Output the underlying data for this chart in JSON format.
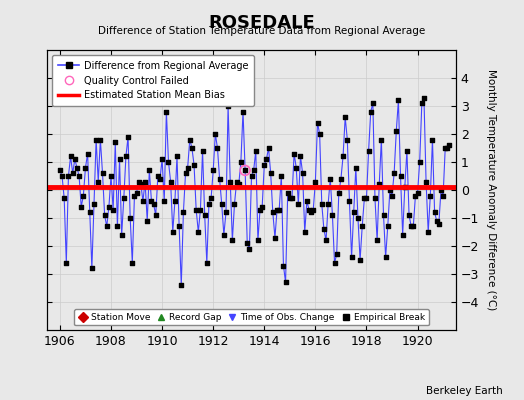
{
  "title": "ROSEDALE",
  "subtitle": "Difference of Station Temperature Data from Regional Average",
  "ylabel": "Monthly Temperature Anomaly Difference (°C)",
  "xlabel_bottom": "Berkeley Earth",
  "xlim": [
    1905.5,
    1921.5
  ],
  "ylim": [
    -5,
    5
  ],
  "yticks": [
    -4,
    -3,
    -2,
    -1,
    0,
    1,
    2,
    3,
    4
  ],
  "xticks": [
    1906,
    1908,
    1910,
    1912,
    1914,
    1916,
    1918,
    1920
  ],
  "bias_value": 0.1,
  "line_color": "#4444ff",
  "marker_color": "#000000",
  "bias_color": "#ff0000",
  "background_color": "#e8e8e8",
  "plot_bg_color": "#e8e8e8",
  "qc_fail_x": [
    1913.25
  ],
  "qc_fail_y": [
    0.7
  ],
  "data_x": [
    1906.0,
    1906.083,
    1906.167,
    1906.25,
    1906.333,
    1906.417,
    1906.5,
    1906.583,
    1906.667,
    1906.75,
    1906.833,
    1906.917,
    1907.0,
    1907.083,
    1907.167,
    1907.25,
    1907.333,
    1907.417,
    1907.5,
    1907.583,
    1907.667,
    1907.75,
    1907.833,
    1907.917,
    1908.0,
    1908.083,
    1908.167,
    1908.25,
    1908.333,
    1908.417,
    1908.5,
    1908.583,
    1908.667,
    1908.75,
    1908.833,
    1908.917,
    1909.0,
    1909.083,
    1909.167,
    1909.25,
    1909.333,
    1909.417,
    1909.5,
    1909.583,
    1909.667,
    1909.75,
    1909.833,
    1909.917,
    1910.0,
    1910.083,
    1910.167,
    1910.25,
    1910.333,
    1910.417,
    1910.5,
    1910.583,
    1910.667,
    1910.75,
    1910.833,
    1910.917,
    1911.0,
    1911.083,
    1911.167,
    1911.25,
    1911.333,
    1911.417,
    1911.5,
    1911.583,
    1911.667,
    1911.75,
    1911.833,
    1911.917,
    1912.0,
    1912.083,
    1912.167,
    1912.25,
    1912.333,
    1912.417,
    1912.5,
    1912.583,
    1912.667,
    1912.75,
    1912.833,
    1912.917,
    1913.0,
    1913.083,
    1913.167,
    1913.25,
    1913.333,
    1913.417,
    1913.5,
    1913.583,
    1913.667,
    1913.75,
    1913.833,
    1913.917,
    1914.0,
    1914.083,
    1914.167,
    1914.25,
    1914.333,
    1914.417,
    1914.5,
    1914.583,
    1914.667,
    1914.75,
    1914.833,
    1914.917,
    1915.0,
    1915.083,
    1915.167,
    1915.25,
    1915.333,
    1915.417,
    1915.5,
    1915.583,
    1915.667,
    1915.75,
    1915.833,
    1915.917,
    1916.0,
    1916.083,
    1916.167,
    1916.25,
    1916.333,
    1916.417,
    1916.5,
    1916.583,
    1916.667,
    1916.75,
    1916.833,
    1916.917,
    1917.0,
    1917.083,
    1917.167,
    1917.25,
    1917.333,
    1917.417,
    1917.5,
    1917.583,
    1917.667,
    1917.75,
    1917.833,
    1917.917,
    1918.0,
    1918.083,
    1918.167,
    1918.25,
    1918.333,
    1918.417,
    1918.5,
    1918.583,
    1918.667,
    1918.75,
    1918.833,
    1918.917,
    1919.0,
    1919.083,
    1919.167,
    1919.25,
    1919.333,
    1919.417,
    1919.5,
    1919.583,
    1919.667,
    1919.75,
    1919.833,
    1919.917,
    1920.0,
    1920.083,
    1920.167,
    1920.25,
    1920.333,
    1920.417,
    1920.5,
    1920.583,
    1920.667,
    1920.75,
    1920.833,
    1920.917,
    1921.0,
    1921.083,
    1921.167,
    1921.25
  ],
  "data_y": [
    0.7,
    0.5,
    -0.3,
    -2.6,
    0.5,
    1.2,
    0.6,
    1.1,
    0.8,
    0.5,
    -0.6,
    -0.2,
    0.8,
    1.3,
    -0.8,
    -2.8,
    -0.5,
    1.8,
    0.3,
    1.8,
    0.6,
    -0.9,
    -1.3,
    -0.6,
    0.5,
    -0.7,
    1.7,
    -1.3,
    1.1,
    -1.6,
    -0.3,
    1.2,
    1.9,
    -1.0,
    -2.6,
    -0.2,
    -0.1,
    0.3,
    0.2,
    -0.4,
    0.3,
    -1.1,
    0.7,
    -0.4,
    -0.5,
    -0.9,
    0.5,
    0.4,
    1.1,
    -0.4,
    2.8,
    1.0,
    0.3,
    -1.5,
    -0.4,
    1.2,
    -1.3,
    -3.4,
    -0.8,
    0.6,
    0.8,
    1.8,
    1.5,
    0.9,
    -0.7,
    -1.5,
    -0.7,
    1.4,
    -0.9,
    -2.6,
    -0.5,
    -0.3,
    0.7,
    2.0,
    1.5,
    0.4,
    -0.5,
    -1.6,
    -0.8,
    3.0,
    0.3,
    -1.8,
    -0.5,
    0.3,
    0.2,
    1.0,
    2.8,
    0.7,
    -1.9,
    -2.1,
    0.5,
    0.7,
    1.4,
    -1.8,
    -0.7,
    -0.6,
    0.9,
    1.1,
    1.5,
    0.6,
    -0.8,
    -1.7,
    -0.7,
    -0.7,
    0.5,
    -2.7,
    -3.3,
    -0.1,
    -0.3,
    -0.3,
    1.3,
    0.8,
    -0.5,
    1.2,
    0.6,
    -1.5,
    -0.4,
    -0.7,
    -0.8,
    -0.7,
    0.3,
    2.4,
    2.0,
    -0.5,
    -1.4,
    -1.8,
    -0.5,
    0.4,
    -0.9,
    -2.6,
    -2.3,
    -0.1,
    0.4,
    1.2,
    2.6,
    1.8,
    -0.4,
    -2.4,
    -0.8,
    0.8,
    -1.0,
    -2.5,
    -1.3,
    -0.3,
    -0.3,
    1.4,
    2.8,
    3.1,
    -0.3,
    -1.8,
    0.2,
    1.8,
    -0.9,
    -2.4,
    -1.3,
    0.0,
    -0.2,
    0.6,
    2.1,
    3.2,
    0.5,
    -1.6,
    0.1,
    1.4,
    -0.9,
    -1.3,
    -1.3,
    -0.2,
    -0.1,
    1.0,
    3.1,
    3.3,
    0.3,
    -1.5,
    -0.2,
    1.8,
    -0.8,
    -1.1,
    -1.2,
    0.0,
    -0.2,
    1.5,
    1.5,
    1.6
  ]
}
